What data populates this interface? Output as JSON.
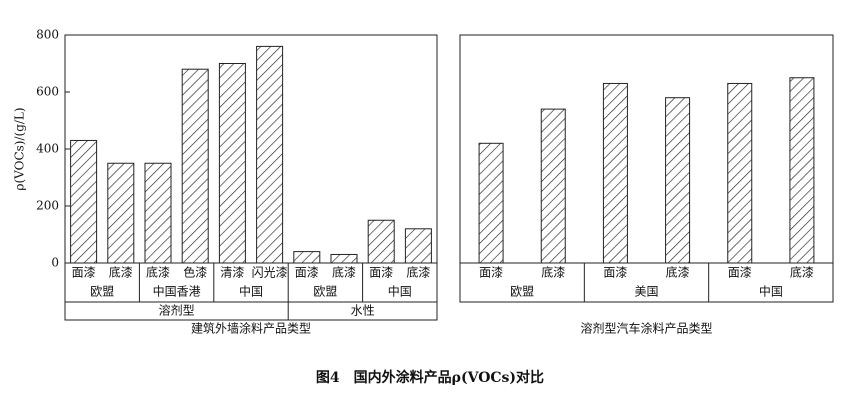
{
  "chart_data": [
    {
      "type": "bar",
      "ylabel": "ρ(VOCs)/(g/L)",
      "xlabel": "建筑外墙涂料产品类型",
      "categories": [
        "面漆",
        "底漆",
        "底漆",
        "色漆",
        "清漆",
        "闪光漆",
        "面漆",
        "底漆",
        "面漆",
        "底漆"
      ],
      "values": [
        430,
        350,
        350,
        680,
        700,
        760,
        40,
        30,
        150,
        120
      ],
      "groups": [
        {
          "label": "欧盟",
          "count": 2
        },
        {
          "label": "中国香港",
          "count": 2
        },
        {
          "label": "中国",
          "count": 2
        },
        {
          "label": "欧盟",
          "count": 2
        },
        {
          "label": "中国",
          "count": 2
        }
      ],
      "supergroups": [
        {
          "label": "溶剂型",
          "count": 6
        },
        {
          "label": "水性",
          "count": 4
        }
      ],
      "ylim": [
        0,
        800
      ],
      "yticks": [
        0,
        200,
        400,
        600,
        800
      ],
      "color": "#222222"
    },
    {
      "type": "bar",
      "xlabel": "溶剂型汽车涂料产品类型",
      "categories": [
        "面漆",
        "底漆",
        "面漆",
        "底漆",
        "面漆",
        "底漆"
      ],
      "values": [
        420,
        540,
        630,
        580,
        630,
        650
      ],
      "groups": [
        {
          "label": "欧盟",
          "count": 2
        },
        {
          "label": "美国",
          "count": 2
        },
        {
          "label": "中国",
          "count": 2
        }
      ],
      "ylim": [
        0,
        800
      ],
      "color": "#222222"
    }
  ],
  "caption": "图4　国内外涂料产品ρ(VOCs)对比"
}
